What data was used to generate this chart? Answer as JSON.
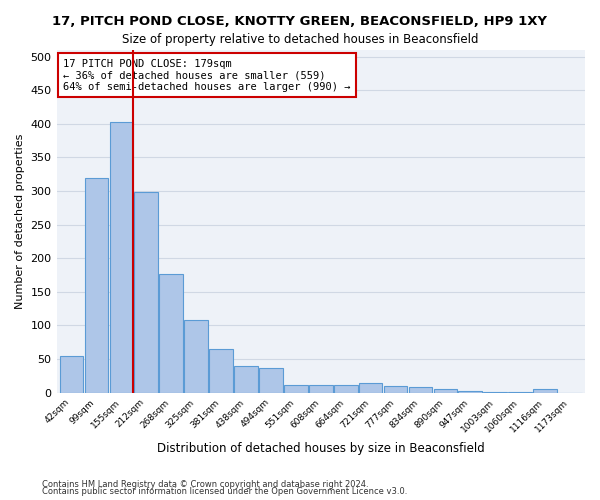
{
  "title": "17, PITCH POND CLOSE, KNOTTY GREEN, BEACONSFIELD, HP9 1XY",
  "subtitle": "Size of property relative to detached houses in Beaconsfield",
  "xlabel": "Distribution of detached houses by size in Beaconsfield",
  "ylabel": "Number of detached properties",
  "footer1": "Contains HM Land Registry data © Crown copyright and database right 2024.",
  "footer2": "Contains public sector information licensed under the Open Government Licence v3.0.",
  "bins": [
    "42sqm",
    "99sqm",
    "155sqm",
    "212sqm",
    "268sqm",
    "325sqm",
    "381sqm",
    "438sqm",
    "494sqm",
    "551sqm",
    "608sqm",
    "664sqm",
    "721sqm",
    "777sqm",
    "834sqm",
    "890sqm",
    "947sqm",
    "1003sqm",
    "1060sqm",
    "1116sqm",
    "1173sqm"
  ],
  "values": [
    55,
    320,
    403,
    298,
    177,
    108,
    65,
    40,
    36,
    12,
    11,
    11,
    15,
    10,
    8,
    5,
    3,
    1,
    1,
    6,
    0
  ],
  "bar_color": "#aec6e8",
  "bar_edge_color": "#5b9bd5",
  "grid_color": "#d0d8e4",
  "background_color": "#eef2f8",
  "ref_line_x": 2,
  "annotation_title": "17 PITCH POND CLOSE: 179sqm",
  "annotation_line1": "← 36% of detached houses are smaller (559)",
  "annotation_line2": "64% of semi-detached houses are larger (990) →",
  "annotation_box_color": "#ffffff",
  "annotation_border_color": "#cc0000",
  "ref_line_color": "#cc0000",
  "ylim": [
    0,
    510
  ],
  "yticks": [
    0,
    50,
    100,
    150,
    200,
    250,
    300,
    350,
    400,
    450,
    500
  ]
}
